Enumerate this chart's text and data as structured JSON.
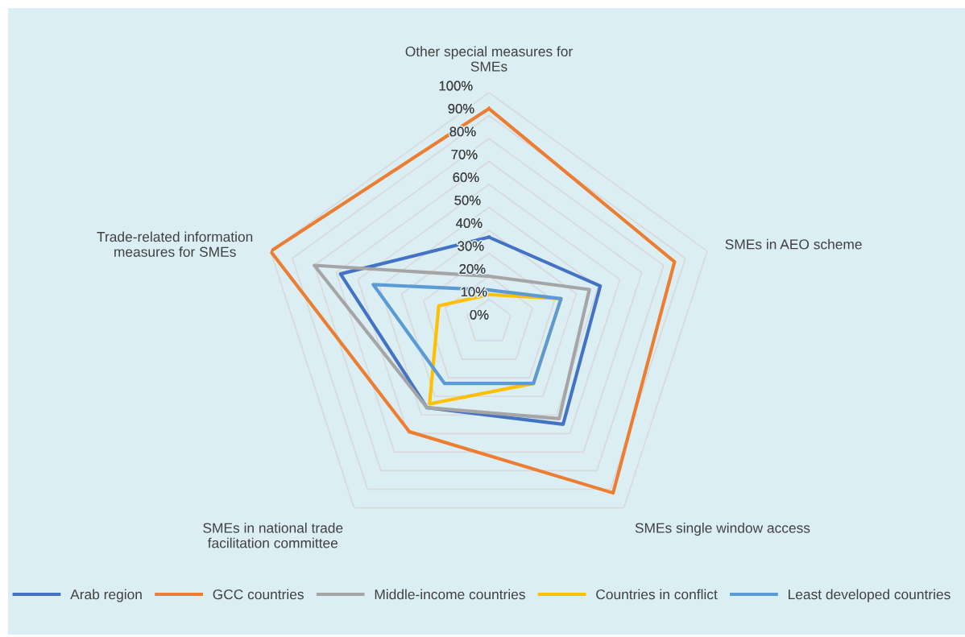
{
  "chart_data": {
    "type": "radar",
    "categories": [
      "Other special measures for SMEs",
      "SMEs in AEO scheme",
      "SMEs single window access",
      "SMEs in national trade facilitation committee",
      "Trade-related information measures for SMEs"
    ],
    "series": [
      {
        "name": "Arab region",
        "color": "#4472c4",
        "values": [
          0.37,
          0.51,
          0.55,
          0.46,
          0.68
        ]
      },
      {
        "name": "GCC countries",
        "color": "#ed7d31",
        "values": [
          0.93,
          0.85,
          0.92,
          0.59,
          1.0
        ]
      },
      {
        "name": "Middle-income countries",
        "color": "#a5a5a5",
        "values": [
          0.2,
          0.46,
          0.52,
          0.46,
          0.8
        ]
      },
      {
        "name": "Countries in conflict",
        "color": "#ffc000",
        "values": [
          0.12,
          0.33,
          0.33,
          0.44,
          0.23
        ]
      },
      {
        "name": "Least developed countries",
        "color": "#5b9bd5",
        "values": [
          0.14,
          0.33,
          0.33,
          0.33,
          0.53
        ]
      }
    ],
    "ylim": [
      0,
      1
    ],
    "yticks": [
      {
        "value": 0,
        "label": "0%"
      },
      {
        "value": 0.1,
        "label": "10%"
      },
      {
        "value": 0.2,
        "label": "20%"
      },
      {
        "value": 0.3,
        "label": "30%"
      },
      {
        "value": 0.4,
        "label": "40%"
      },
      {
        "value": 0.5,
        "label": "50%"
      },
      {
        "value": 0.6,
        "label": "60%"
      },
      {
        "value": 0.7,
        "label": "70%"
      },
      {
        "value": 0.8,
        "label": "80%"
      },
      {
        "value": 0.9,
        "label": "90%"
      },
      {
        "value": 1.0,
        "label": "100%"
      }
    ],
    "grid": true,
    "legend": "bottom",
    "marker": "none",
    "line_style": "solid"
  }
}
